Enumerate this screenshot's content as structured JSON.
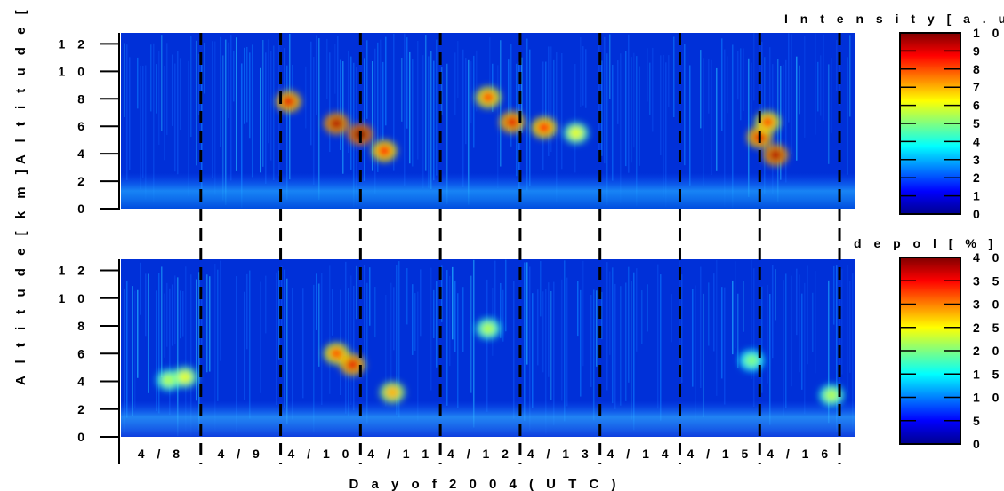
{
  "chart_data": [
    {
      "type": "heatmap",
      "panel": "top",
      "ylabel": "A l t i t u d e [ k m",
      "yticks": [
        "0",
        "2",
        "4",
        "6",
        "8",
        "10",
        "12"
      ],
      "ylim": [
        0,
        12.8
      ],
      "colorbar": {
        "title": "I n t e n s i t y [ a . u . ]",
        "ticks": [
          "0",
          "1",
          "2",
          "3",
          "4",
          "5",
          "6",
          "7",
          "8",
          "9",
          "10"
        ],
        "range": [
          0,
          10
        ]
      },
      "features": [
        {
          "day": 2.1,
          "alt": 7.8,
          "level": 0.9
        },
        {
          "day": 2.7,
          "alt": 6.2,
          "level": 0.95
        },
        {
          "day": 3.0,
          "alt": 5.4,
          "level": 1.0
        },
        {
          "day": 3.3,
          "alt": 4.2,
          "level": 0.85
        },
        {
          "day": 4.6,
          "alt": 8.1,
          "level": 0.8
        },
        {
          "day": 4.9,
          "alt": 6.3,
          "level": 0.9
        },
        {
          "day": 5.3,
          "alt": 5.9,
          "level": 0.85
        },
        {
          "day": 5.7,
          "alt": 5.5,
          "level": 0.6
        },
        {
          "day": 8.0,
          "alt": 5.2,
          "level": 0.9
        },
        {
          "day": 8.1,
          "alt": 6.3,
          "level": 0.8
        },
        {
          "day": 8.2,
          "alt": 3.9,
          "level": 0.95
        }
      ]
    },
    {
      "type": "heatmap",
      "panel": "bottom",
      "ylabel": "A l t i t u d e [ k m ]",
      "yticks": [
        "0",
        "2",
        "4",
        "6",
        "8",
        "10",
        "12"
      ],
      "ylim": [
        0,
        12.8
      ],
      "colorbar": {
        "title": "d e p o l [ % ]",
        "ticks": [
          "0",
          "5",
          "10",
          "15",
          "20",
          "25",
          "30",
          "35",
          "40"
        ],
        "range": [
          0,
          40
        ]
      },
      "features": [
        {
          "day": 0.6,
          "alt": 4.1,
          "level": 0.55
        },
        {
          "day": 0.8,
          "alt": 4.3,
          "level": 0.6
        },
        {
          "day": 2.7,
          "alt": 6.0,
          "level": 0.8
        },
        {
          "day": 2.9,
          "alt": 5.2,
          "level": 0.9
        },
        {
          "day": 3.4,
          "alt": 3.2,
          "level": 0.7
        },
        {
          "day": 4.6,
          "alt": 7.8,
          "level": 0.55
        },
        {
          "day": 7.9,
          "alt": 5.5,
          "level": 0.5
        },
        {
          "day": 8.9,
          "alt": 3.0,
          "level": 0.55
        }
      ]
    }
  ],
  "xaxis": {
    "label": "D a y   o f   2 0 0 4   ( U T C )",
    "days": [
      "4 / 8",
      "4 / 9",
      "4 / 1 0",
      "4 / 1 1",
      "4 / 1 2",
      "4 / 1 3",
      "4 / 1 4",
      "4 / 1 5",
      "4 / 1 6"
    ],
    "range_days": [
      0,
      9.2
    ]
  },
  "colors": {
    "jet": [
      "#00008f",
      "#0000ff",
      "#0080ff",
      "#00ffff",
      "#80ff80",
      "#ffff00",
      "#ff8000",
      "#ff0000",
      "#800000"
    ]
  }
}
